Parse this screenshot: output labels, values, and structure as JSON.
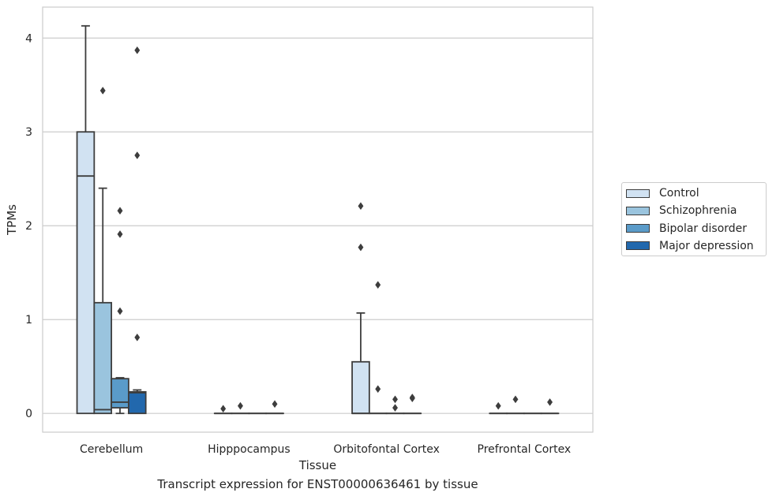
{
  "caption": "Transcript expression for ENST00000636461 by tissue",
  "chart_data": {
    "type": "box",
    "xlabel": "Tissue",
    "ylabel": "TPMs",
    "ylim": [
      -0.2,
      4.33
    ],
    "yticks": [
      0,
      1,
      2,
      3,
      4
    ],
    "grid": "horizontal",
    "legend_position": "right",
    "categories": [
      "Cerebellum",
      "Hipppocampus",
      "Orbitofontal Cortex",
      "Prefrontal Cortex"
    ],
    "series": [
      {
        "name": "Control",
        "color": "#d1e2f2",
        "boxes": [
          {
            "q1": 0,
            "median": 2.53,
            "q3": 3.0,
            "whisker_low": 0,
            "whisker_high": 4.13,
            "outliers": []
          },
          {
            "q1": 0,
            "median": 0,
            "q3": 0,
            "whisker_low": 0,
            "whisker_high": 0,
            "outliers": [
              0.05
            ]
          },
          {
            "q1": 0,
            "median": 0,
            "q3": 0.55,
            "whisker_low": 0,
            "whisker_high": 1.07,
            "outliers": [
              2.21,
              1.77
            ]
          },
          {
            "q1": 0,
            "median": 0,
            "q3": 0,
            "whisker_low": 0,
            "whisker_high": 0,
            "outliers": [
              0.08
            ]
          }
        ]
      },
      {
        "name": "Schizophrenia",
        "color": "#9ac4de",
        "boxes": [
          {
            "q1": 0,
            "median": 0.04,
            "q3": 1.18,
            "whisker_low": 0,
            "whisker_high": 2.4,
            "outliers": [
              3.44
            ]
          },
          {
            "q1": 0,
            "median": 0,
            "q3": 0,
            "whisker_low": 0,
            "whisker_high": 0,
            "outliers": [
              0.08
            ]
          },
          {
            "q1": 0,
            "median": 0,
            "q3": 0,
            "whisker_low": 0,
            "whisker_high": 0,
            "outliers": [
              1.37,
              0.26
            ]
          },
          {
            "q1": 0,
            "median": 0,
            "q3": 0,
            "whisker_low": 0,
            "whisker_high": 0,
            "outliers": [
              0.15
            ]
          }
        ]
      },
      {
        "name": "Bipolar disorder",
        "color": "#5a9bc9",
        "boxes": [
          {
            "q1": 0.06,
            "median": 0.12,
            "q3": 0.37,
            "whisker_low": 0,
            "whisker_high": 0.38,
            "outliers": [
              2.16,
              1.91,
              1.09
            ]
          },
          {
            "q1": 0,
            "median": 0,
            "q3": 0,
            "whisker_low": 0,
            "whisker_high": 0,
            "outliers": []
          },
          {
            "q1": 0,
            "median": 0,
            "q3": 0,
            "whisker_low": 0,
            "whisker_high": 0,
            "outliers": [
              0.15,
              0.06
            ]
          },
          {
            "q1": 0,
            "median": 0,
            "q3": 0,
            "whisker_low": 0,
            "whisker_high": 0,
            "outliers": []
          }
        ]
      },
      {
        "name": "Major depression",
        "color": "#2268ad",
        "boxes": [
          {
            "q1": 0,
            "median": 0.22,
            "q3": 0.23,
            "whisker_low": 0,
            "whisker_high": 0.25,
            "outliers": [
              3.87,
              2.75,
              0.81
            ]
          },
          {
            "q1": 0,
            "median": 0,
            "q3": 0,
            "whisker_low": 0,
            "whisker_high": 0,
            "outliers": [
              0.1
            ]
          },
          {
            "q1": 0,
            "median": 0,
            "q3": 0,
            "whisker_low": 0,
            "whisker_high": 0,
            "outliers": [
              0.17,
              0.16
            ]
          },
          {
            "q1": 0,
            "median": 0,
            "q3": 0,
            "whisker_low": 0,
            "whisker_high": 0,
            "outliers": [
              0.12
            ]
          }
        ]
      }
    ]
  }
}
